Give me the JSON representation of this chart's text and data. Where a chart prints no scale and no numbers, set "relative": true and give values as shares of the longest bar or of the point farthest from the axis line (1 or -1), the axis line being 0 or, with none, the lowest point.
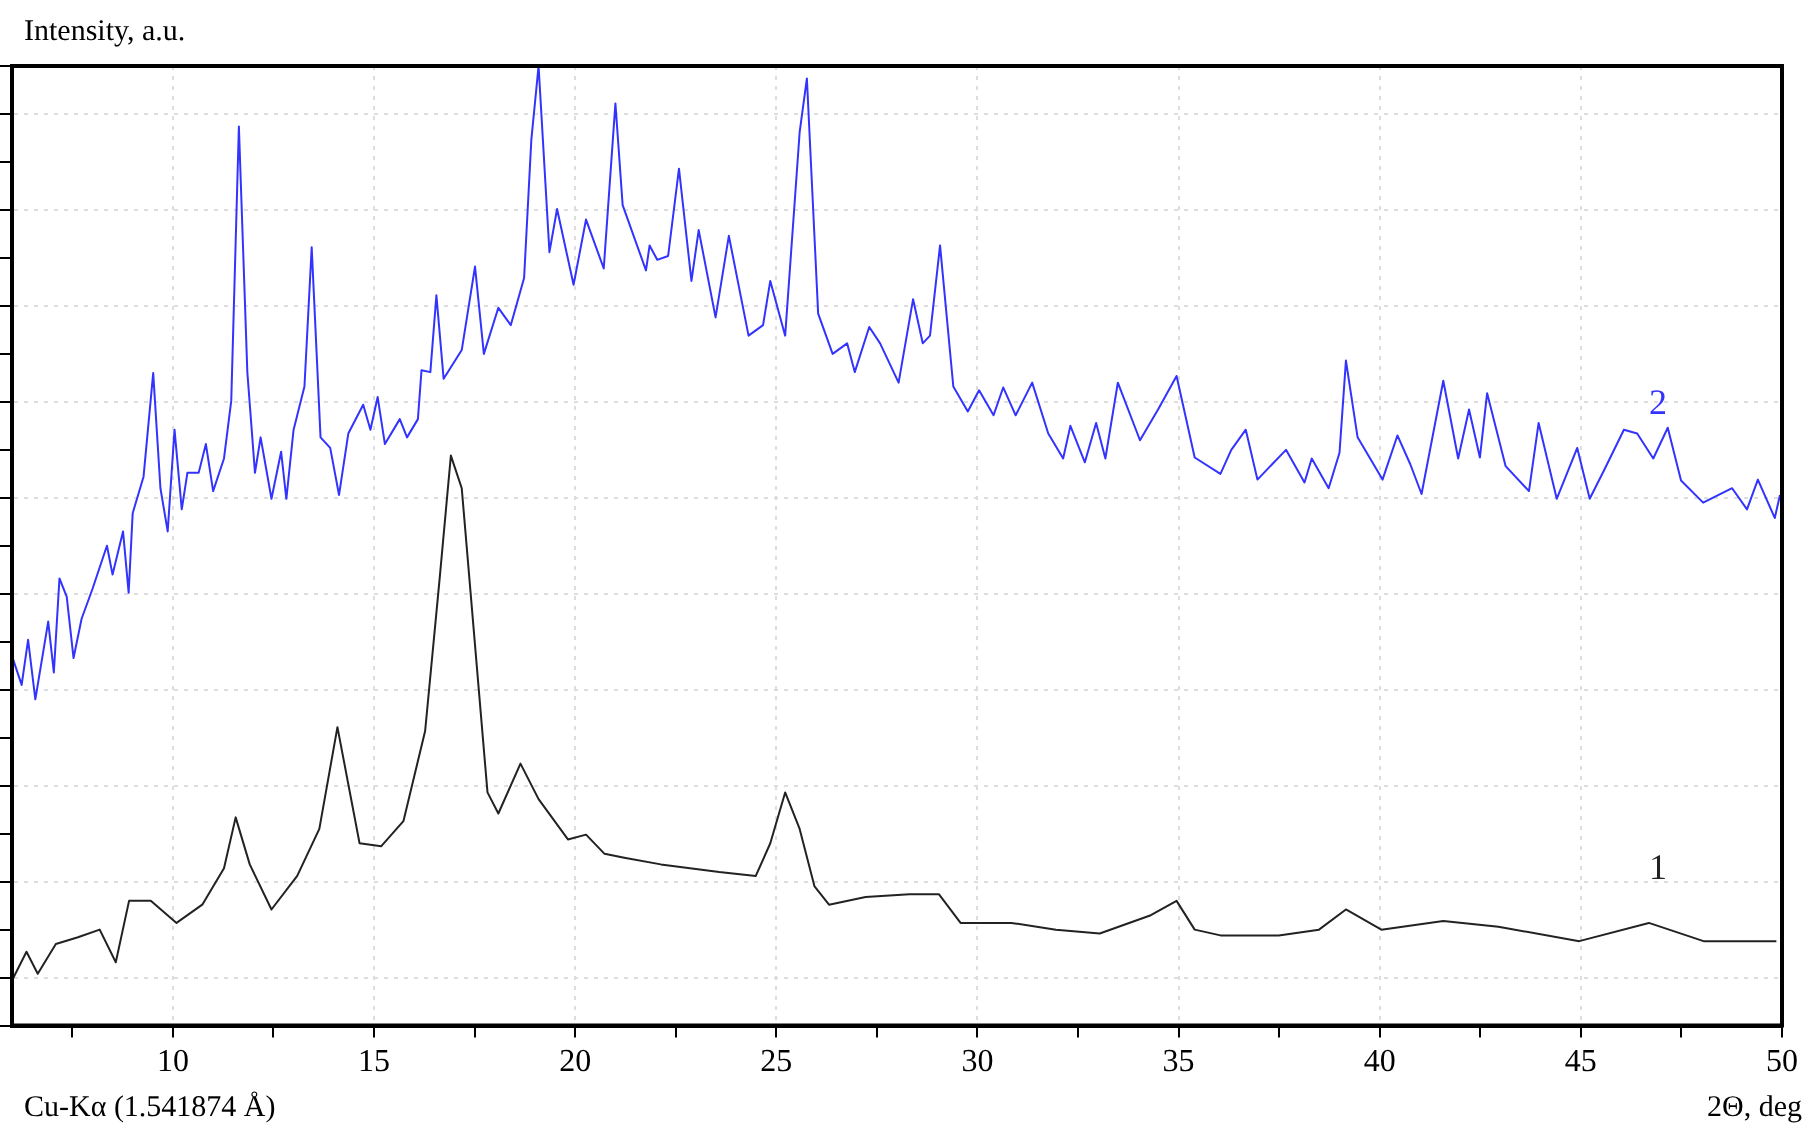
{
  "chart_data": {
    "type": "line",
    "ylabel": "Intensity, a.u.",
    "xlabel": "2Θ, deg",
    "annotations": [
      "Cu-Kα (1.541874 Å)"
    ],
    "relative": true,
    "grid": true,
    "legend": false,
    "marker": "none",
    "line_style": "solid",
    "xlim": [
      6,
      50
    ],
    "xticks": [
      {
        "value": 7.5,
        "label": null
      },
      10,
      {
        "value": 12.5,
        "label": null
      },
      15,
      {
        "value": 17.5,
        "label": null
      },
      20,
      {
        "value": 22.5,
        "label": null
      },
      25,
      {
        "value": 27.5,
        "label": null
      },
      30,
      {
        "value": 32.5,
        "label": null
      },
      35,
      {
        "value": 37.5,
        "label": null
      },
      40,
      {
        "value": 42.5,
        "label": null
      },
      45,
      {
        "value": 47.5,
        "label": null
      },
      50
    ],
    "series": [
      {
        "name": "1",
        "color": "#222222",
        "x": [
          6.0,
          6.36,
          6.64,
          7.09,
          7.64,
          8.18,
          8.58,
          8.91,
          9.45,
          10.09,
          10.73,
          11.27,
          11.56,
          11.91,
          12.45,
          13.09,
          13.64,
          14.09,
          14.64,
          15.18,
          15.73,
          16.27,
          16.64,
          16.91,
          17.18,
          17.82,
          18.09,
          18.64,
          19.09,
          19.82,
          20.27,
          20.73,
          21.22,
          22.13,
          23.58,
          24.49,
          24.85,
          25.22,
          25.58,
          25.95,
          26.31,
          27.22,
          28.31,
          29.04,
          29.58,
          30.85,
          31.95,
          33.04,
          34.31,
          34.95,
          35.4,
          36.04,
          37.49,
          38.49,
          39.16,
          40.04,
          41.58,
          42.95,
          44.96,
          46.69,
          48.05,
          49.86
        ],
        "values": [
          0.047,
          0.077,
          0.054,
          0.085,
          0.092,
          0.1,
          0.066,
          0.13,
          0.13,
          0.107,
          0.126,
          0.164,
          0.217,
          0.168,
          0.121,
          0.156,
          0.205,
          0.311,
          0.19,
          0.187,
          0.213,
          0.307,
          0.47,
          0.594,
          0.56,
          0.243,
          0.221,
          0.273,
          0.236,
          0.194,
          0.199,
          0.179,
          0.175,
          0.168,
          0.16,
          0.156,
          0.19,
          0.243,
          0.205,
          0.145,
          0.126,
          0.134,
          0.137,
          0.137,
          0.107,
          0.107,
          0.1,
          0.096,
          0.115,
          0.13,
          0.1,
          0.094,
          0.094,
          0.1,
          0.121,
          0.1,
          0.109,
          0.103,
          0.088,
          0.107,
          0.088,
          0.088
        ]
      },
      {
        "name": "2",
        "color": "#3333ff",
        "x": [
          6.0,
          6.24,
          6.4,
          6.58,
          6.9,
          7.04,
          7.18,
          7.36,
          7.53,
          7.73,
          8.0,
          8.36,
          8.5,
          8.76,
          8.9,
          9.0,
          9.27,
          9.51,
          9.69,
          9.87,
          10.04,
          10.22,
          10.36,
          10.64,
          10.82,
          11.0,
          11.27,
          11.45,
          11.64,
          11.85,
          12.04,
          12.18,
          12.45,
          12.69,
          12.82,
          13.0,
          13.27,
          13.45,
          13.67,
          13.91,
          14.13,
          14.36,
          14.73,
          14.91,
          15.09,
          15.27,
          15.64,
          15.82,
          16.09,
          16.18,
          16.4,
          16.55,
          16.73,
          17.18,
          17.51,
          17.73,
          18.09,
          18.4,
          18.73,
          18.91,
          19.09,
          19.36,
          19.55,
          19.96,
          20.27,
          20.71,
          21.0,
          21.18,
          21.76,
          21.85,
          22.04,
          22.31,
          22.58,
          22.89,
          23.07,
          23.49,
          23.82,
          24.31,
          24.67,
          24.85,
          25.22,
          25.58,
          25.76,
          26.04,
          26.4,
          26.76,
          26.95,
          27.31,
          27.58,
          28.04,
          28.4,
          28.64,
          28.82,
          29.07,
          29.4,
          29.76,
          30.04,
          30.4,
          30.64,
          30.95,
          31.36,
          31.76,
          32.13,
          32.31,
          32.67,
          32.95,
          33.18,
          33.49,
          34.04,
          34.49,
          34.95,
          35.4,
          36.04,
          36.31,
          36.67,
          36.96,
          37.67,
          38.13,
          38.31,
          38.73,
          39.0,
          39.16,
          39.45,
          40.07,
          40.44,
          40.76,
          41.04,
          41.58,
          41.95,
          42.22,
          42.49,
          42.67,
          43.13,
          43.71,
          43.95,
          44.4,
          44.91,
          45.22,
          45.58,
          46.07,
          46.4,
          46.8,
          47.16,
          47.49,
          48.04,
          48.76,
          49.13,
          49.4,
          49.82,
          49.95
        ],
        "values": [
          0.385,
          0.355,
          0.402,
          0.34,
          0.421,
          0.368,
          0.466,
          0.447,
          0.383,
          0.424,
          0.455,
          0.5,
          0.47,
          0.515,
          0.451,
          0.534,
          0.572,
          0.68,
          0.56,
          0.515,
          0.621,
          0.538,
          0.576,
          0.576,
          0.606,
          0.557,
          0.591,
          0.651,
          0.937,
          0.681,
          0.576,
          0.613,
          0.549,
          0.598,
          0.549,
          0.621,
          0.666,
          0.811,
          0.613,
          0.602,
          0.553,
          0.617,
          0.647,
          0.621,
          0.655,
          0.606,
          0.632,
          0.613,
          0.632,
          0.683,
          0.681,
          0.761,
          0.674,
          0.704,
          0.791,
          0.7,
          0.748,
          0.73,
          0.779,
          0.923,
          1,
          0.806,
          0.851,
          0.772,
          0.84,
          0.789,
          0.961,
          0.855,
          0.787,
          0.813,
          0.798,
          0.802,
          0.893,
          0.776,
          0.829,
          0.738,
          0.823,
          0.719,
          0.73,
          0.776,
          0.719,
          0.931,
          0.987,
          0.742,
          0.7,
          0.711,
          0.681,
          0.728,
          0.711,
          0.67,
          0.757,
          0.711,
          0.719,
          0.813,
          0.666,
          0.64,
          0.662,
          0.636,
          0.665,
          0.636,
          0.67,
          0.617,
          0.591,
          0.625,
          0.587,
          0.628,
          0.591,
          0.67,
          0.61,
          0.642,
          0.677,
          0.592,
          0.575,
          0.6,
          0.621,
          0.569,
          0.6,
          0.566,
          0.591,
          0.56,
          0.597,
          0.693,
          0.613,
          0.569,
          0.615,
          0.585,
          0.554,
          0.672,
          0.591,
          0.642,
          0.592,
          0.659,
          0.583,
          0.557,
          0.628,
          0.549,
          0.602,
          0.549,
          0.579,
          0.621,
          0.617,
          0.591,
          0.623,
          0.568,
          0.545,
          0.56,
          0.538,
          0.569,
          0.529,
          0.553
        ]
      }
    ]
  }
}
